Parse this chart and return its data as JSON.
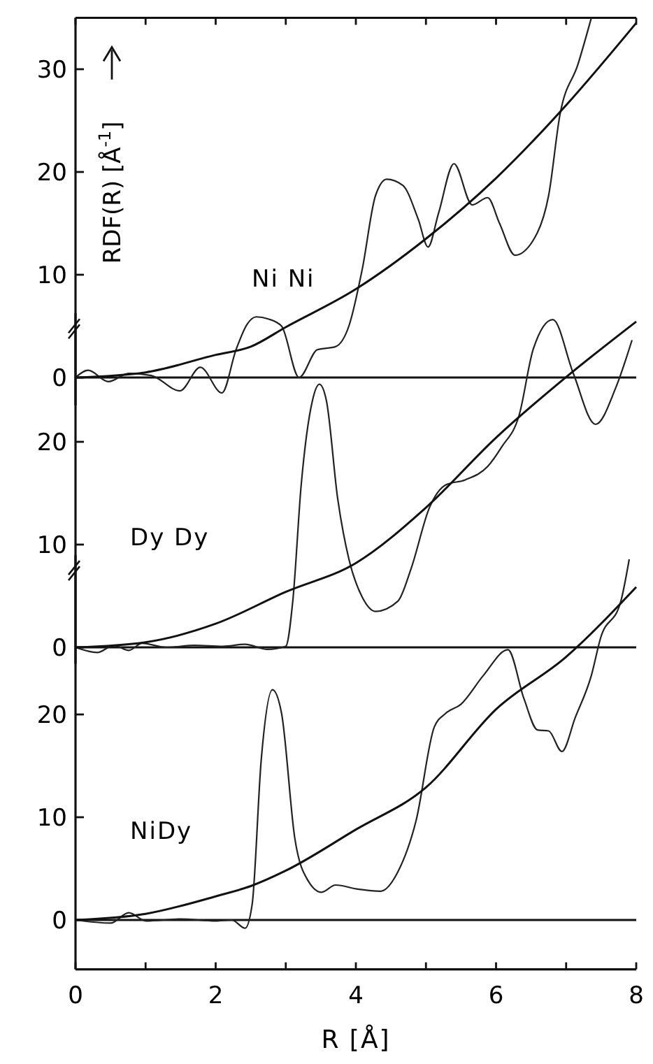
{
  "chart_data": [
    {
      "type": "line",
      "title": "Ni Ni",
      "ylabel": "RDF(R) [Å$^{-1}$]",
      "xlim": [
        0,
        8
      ],
      "ylim": [
        -2.7,
        35
      ],
      "yticks": [
        0,
        10,
        20,
        30
      ],
      "xticks": [
        0,
        {
          "value": 1,
          "label": null
        },
        2,
        {
          "value": 3,
          "label": null
        },
        4,
        {
          "value": 5,
          "label": null
        },
        6,
        {
          "value": 7,
          "label": null
        },
        8
      ],
      "tick_labels": "y",
      "grid": false,
      "marker": "none",
      "line_style": "solid",
      "ref_lines": [
        {
          "axis": "y",
          "value": 0,
          "color": "#111111"
        }
      ],
      "series": [
        {
          "color": "#222222",
          "x": [
            0,
            0.18,
            0.47,
            0.76,
            1.08,
            1.49,
            1.78,
            2.09,
            2.29,
            2.45,
            2.58,
            2.75,
            2.94,
            3.19,
            3.45,
            3.71,
            3.9,
            4.09,
            4.28,
            4.44,
            4.67,
            4.89,
            5.03,
            5.18,
            5.4,
            5.66,
            5.88,
            6.05,
            6.27,
            6.59,
            6.75,
            6.91,
            7.17,
            7.36
          ],
          "values": [
            0,
            0.7,
            -0.4,
            0.4,
            0.2,
            -1.3,
            1.0,
            -1.5,
            2.7,
            5.2,
            5.9,
            5.7,
            5.0,
            0,
            2.7,
            3.0,
            5,
            10.5,
            17.7,
            19.3,
            18.7,
            15.4,
            12.7,
            16,
            20.8,
            16.8,
            17.5,
            15,
            11.9,
            14.1,
            17.7,
            25.5,
            30.5,
            35
          ]
        },
        {
          "color": "#111111",
          "x": [
            0,
            1,
            2,
            2.5,
            3,
            4,
            5,
            6,
            7,
            8
          ],
          "values": [
            0,
            0.5,
            2.2,
            3.0,
            4.9,
            8.6,
            13.5,
            19.4,
            26.5,
            34.5
          ]
        }
      ]
    },
    {
      "type": "line",
      "title": "Dy Dy",
      "xlim": [
        0,
        8
      ],
      "ylim": [
        -1.6,
        32.5
      ],
      "yticks": [
        0,
        10,
        20
      ],
      "tick_labels": "y",
      "grid": false,
      "marker": "none",
      "line_style": "solid",
      "ref_lines": [
        {
          "axis": "y",
          "value": 0,
          "color": "#111111"
        }
      ],
      "series": [
        {
          "color": "#222222",
          "x": [
            0,
            0.31,
            0.55,
            0.76,
            0.95,
            1.3,
            1.7,
            2.1,
            2.42,
            2.74,
            3.0,
            3.1,
            3.22,
            3.38,
            3.48,
            3.58,
            3.74,
            3.9,
            4.09,
            4.28,
            4.6,
            4.79,
            5.05,
            5.28,
            5.56,
            5.88,
            6.08,
            6.33,
            6.53,
            6.81,
            7.1,
            7.42,
            7.71,
            7.94
          ],
          "values": [
            0,
            -0.5,
            0.2,
            -0.3,
            0.4,
            0,
            0.2,
            0.1,
            0.3,
            -0.2,
            0.1,
            4.5,
            15.8,
            24,
            25.6,
            24,
            14.5,
            8.6,
            4.9,
            3.5,
            4.5,
            7.7,
            13.6,
            15.8,
            16.3,
            17.6,
            19.5,
            22.6,
            29,
            31.9,
            26.7,
            21.7,
            25.3,
            29.9
          ]
        },
        {
          "color": "#111111",
          "x": [
            0,
            1,
            2,
            3,
            4,
            5,
            6,
            7,
            8
          ],
          "values": [
            0,
            0.5,
            2.3,
            5.4,
            8.2,
            13.6,
            20.4,
            26.3,
            31.7
          ]
        }
      ]
    },
    {
      "type": "line",
      "title": "NiDy",
      "xlabel": "R [Å]",
      "xlim": [
        0,
        8
      ],
      "ylim": [
        -4.8,
        35.5
      ],
      "yticks": [
        0,
        10,
        20
      ],
      "xticks": [
        0,
        {
          "value": 1,
          "label": null
        },
        2,
        {
          "value": 3,
          "label": null
        },
        4,
        {
          "value": 5,
          "label": null
        },
        6,
        {
          "value": 7,
          "label": null
        },
        8
      ],
      "grid": false,
      "marker": "none",
      "line_style": "solid",
      "ref_lines": [
        {
          "axis": "y",
          "value": 0,
          "color": "#111111"
        }
      ],
      "series": [
        {
          "color": "#222222",
          "x": [
            0,
            0.5,
            0.76,
            1.01,
            1.5,
            2.0,
            2.23,
            2.42,
            2.52,
            2.65,
            2.81,
            2.94,
            3.13,
            3.32,
            3.51,
            3.71,
            4.03,
            4.35,
            4.6,
            4.86,
            5.12,
            5.28,
            5.5,
            5.82,
            6.17,
            6.4,
            6.59,
            6.75,
            6.94,
            7.13,
            7.36,
            7.49,
            7.78,
            7.9
          ],
          "values": [
            0,
            -0.3,
            0.7,
            -0.1,
            0.1,
            -0.1,
            0,
            -0.8,
            1.5,
            15.6,
            22.4,
            20.1,
            7.9,
            3.8,
            2.7,
            3.4,
            3.0,
            2.8,
            4.7,
            9.7,
            18.8,
            20.1,
            21,
            23.8,
            26.3,
            21.5,
            18.5,
            18.4,
            16.4,
            19.7,
            23.8,
            27.4,
            31,
            35.1
          ]
        },
        {
          "color": "#111111",
          "x": [
            0,
            1,
            2,
            2.5,
            3,
            4,
            5,
            6,
            7,
            8
          ],
          "values": [
            0,
            0.6,
            2.3,
            3.3,
            4.8,
            8.8,
            12.9,
            20.5,
            25.6,
            32.4
          ]
        }
      ]
    }
  ]
}
